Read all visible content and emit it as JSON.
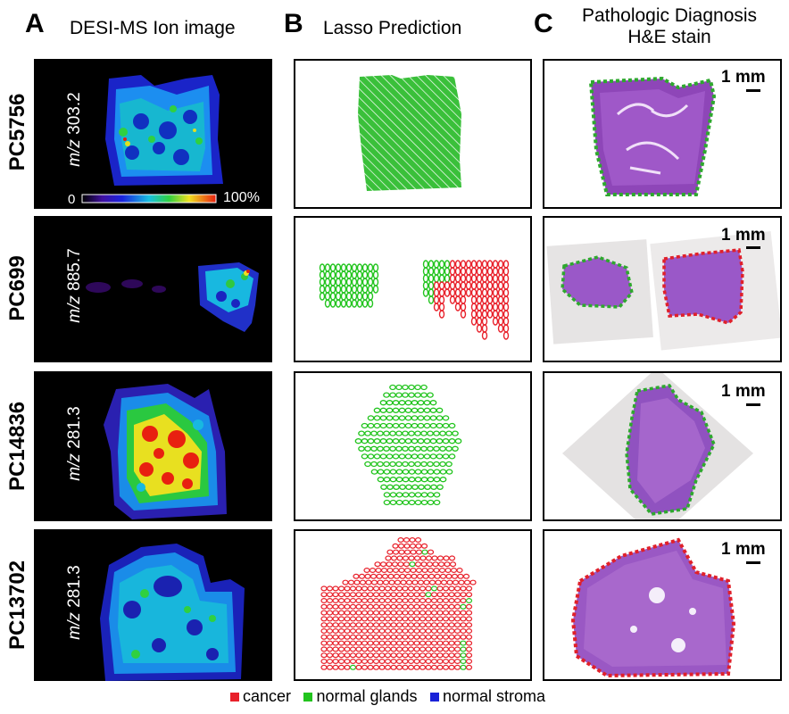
{
  "panels": {
    "A": {
      "letter": "A",
      "title": "DESI-MS Ion image"
    },
    "B": {
      "letter": "B",
      "title": "Lasso Prediction"
    },
    "C": {
      "letter": "C",
      "title_line1": "Pathologic Diagnosis",
      "title_line2": "H&E stain"
    }
  },
  "rows": [
    {
      "sample": "PC5756",
      "mz_prefix": "m/z",
      "mz_value": "303.2",
      "scale": "1 mm",
      "prediction": "normal glands",
      "diagnosis_outline": "green"
    },
    {
      "sample": "PC699",
      "mz_prefix": "m/z",
      "mz_value": "885.7",
      "scale": "1 mm",
      "prediction": "normal glands + cancer",
      "diagnosis_outline": "green+red"
    },
    {
      "sample": "PC14836",
      "mz_prefix": "m/z",
      "mz_value": "281.3",
      "scale": "1 mm",
      "prediction": "normal glands",
      "diagnosis_outline": "green"
    },
    {
      "sample": "PC13702",
      "mz_prefix": "m/z",
      "mz_value": "281.3",
      "scale": "1 mm",
      "prediction": "cancer",
      "diagnosis_outline": "red"
    }
  ],
  "colorbar": {
    "min_label": "0",
    "max_label": "100%"
  },
  "legend": [
    {
      "label": "cancer",
      "color": "#e8202a"
    },
    {
      "label": "normal glands",
      "color": "#22c41e"
    },
    {
      "label": "normal stroma",
      "color": "#1a22d8"
    }
  ],
  "colors": {
    "cancer": "#e8202a",
    "normal": "#22c41e",
    "stroma": "#1a22d8",
    "tissue": "#9a58c0"
  }
}
